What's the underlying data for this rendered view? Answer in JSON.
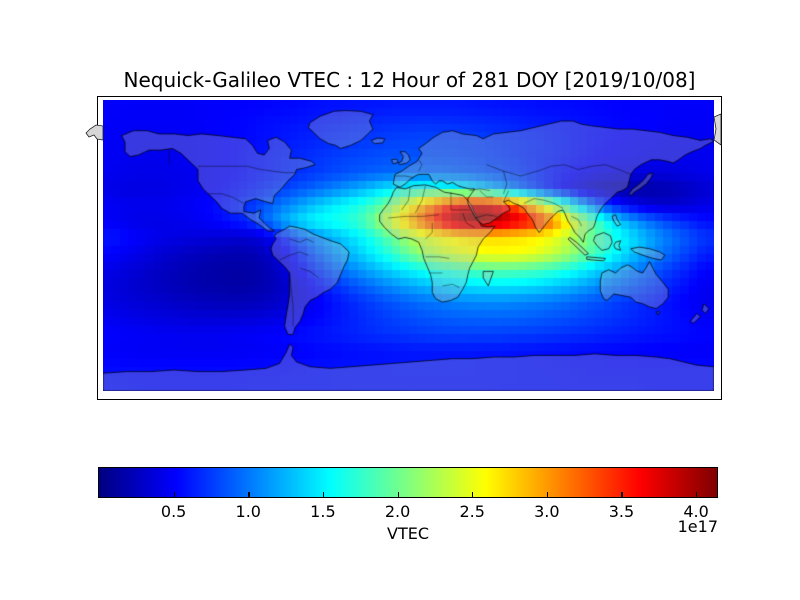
{
  "figure": {
    "title": "Nequick-Galileo VTEC : 12 Hour of 281 DOY [2019/10/08]",
    "background": "#ffffff"
  },
  "colorbar": {
    "label": "VTEC",
    "offset_text": "1e17",
    "ticks": [
      0.5,
      1.0,
      1.5,
      2.0,
      2.5,
      3.0,
      3.5,
      4.0
    ],
    "vmin": 0,
    "vmax": 4.14,
    "colormap": "jet"
  },
  "chart_data": {
    "type": "heatmap",
    "title": "Nequick-Galileo VTEC : 12 Hour of 281 DOY [2019/10/08]",
    "xlabel": "",
    "ylabel": "",
    "colorbar_label": "VTEC",
    "scale_factor_text": "1e17",
    "colormap": "jet",
    "vmin": 0,
    "vmax": 4.14,
    "projection": "equirectangular world map",
    "lon_range": [
      -180,
      180
    ],
    "lat_range": [
      -90,
      90
    ],
    "grid_resolution_deg": 10,
    "lon_centers": [
      -175,
      -165,
      -155,
      -145,
      -135,
      -125,
      -115,
      -105,
      -95,
      -85,
      -75,
      -65,
      -55,
      -45,
      -35,
      -25,
      -15,
      -5,
      5,
      15,
      25,
      35,
      45,
      55,
      65,
      75,
      85,
      95,
      105,
      115,
      125,
      135,
      145,
      155,
      165,
      175
    ],
    "lat_centers": [
      85,
      75,
      65,
      55,
      45,
      35,
      25,
      15,
      5,
      -5,
      -15,
      -25,
      -35,
      -45,
      -55,
      -65,
      -75,
      -85
    ],
    "values_1e17": [
      [
        0.5,
        0.5,
        0.49,
        0.49,
        0.49,
        0.5,
        0.5,
        0.51,
        0.52,
        0.53,
        0.54,
        0.55,
        0.57,
        0.58,
        0.59,
        0.6,
        0.61,
        0.62,
        0.62,
        0.62,
        0.62,
        0.61,
        0.6,
        0.59,
        0.58,
        0.57,
        0.56,
        0.55,
        0.54,
        0.53,
        0.52,
        0.51,
        0.51,
        0.5,
        0.5,
        0.5
      ],
      [
        0.5,
        0.49,
        0.49,
        0.49,
        0.49,
        0.5,
        0.51,
        0.52,
        0.54,
        0.56,
        0.58,
        0.6,
        0.62,
        0.64,
        0.66,
        0.68,
        0.7,
        0.71,
        0.72,
        0.72,
        0.71,
        0.7,
        0.69,
        0.67,
        0.65,
        0.63,
        0.61,
        0.59,
        0.57,
        0.55,
        0.53,
        0.52,
        0.51,
        0.5,
        0.49,
        0.49
      ],
      [
        0.48,
        0.47,
        0.46,
        0.46,
        0.47,
        0.48,
        0.5,
        0.52,
        0.54,
        0.57,
        0.6,
        0.63,
        0.66,
        0.69,
        0.72,
        0.75,
        0.77,
        0.79,
        0.8,
        0.8,
        0.79,
        0.78,
        0.76,
        0.73,
        0.7,
        0.67,
        0.64,
        0.6,
        0.57,
        0.54,
        0.52,
        0.5,
        0.48,
        0.47,
        0.47,
        0.47
      ],
      [
        0.48,
        0.46,
        0.45,
        0.45,
        0.46,
        0.48,
        0.5,
        0.53,
        0.56,
        0.6,
        0.64,
        0.68,
        0.72,
        0.76,
        0.79,
        0.82,
        0.84,
        0.85,
        0.85,
        0.84,
        0.83,
        0.81,
        0.78,
        0.75,
        0.71,
        0.67,
        0.63,
        0.59,
        0.55,
        0.52,
        0.49,
        0.47,
        0.46,
        0.45,
        0.45,
        0.46
      ],
      [
        0.46,
        0.44,
        0.43,
        0.43,
        0.44,
        0.46,
        0.49,
        0.52,
        0.56,
        0.6,
        0.65,
        0.7,
        0.75,
        0.8,
        0.85,
        0.89,
        0.93,
        0.95,
        0.96,
        0.95,
        0.93,
        0.9,
        0.86,
        0.81,
        0.75,
        0.68,
        0.61,
        0.54,
        0.48,
        0.43,
        0.4,
        0.38,
        0.38,
        0.39,
        0.41,
        0.44
      ],
      [
        0.42,
        0.4,
        0.4,
        0.41,
        0.43,
        0.46,
        0.5,
        0.55,
        0.61,
        0.68,
        0.76,
        0.85,
        0.94,
        1.04,
        1.15,
        1.28,
        1.42,
        1.55,
        1.64,
        1.67,
        1.63,
        1.52,
        1.36,
        1.17,
        0.97,
        0.78,
        0.6,
        0.44,
        0.31,
        0.22,
        0.17,
        0.15,
        0.17,
        0.21,
        0.27,
        0.34
      ],
      [
        0.48,
        0.46,
        0.45,
        0.45,
        0.47,
        0.5,
        0.55,
        0.62,
        0.72,
        0.85,
        1.0,
        1.16,
        1.32,
        1.46,
        1.58,
        1.72,
        1.95,
        2.3,
        2.75,
        3.15,
        3.5,
        3.75,
        3.8,
        3.6,
        3.2,
        2.7,
        2.15,
        1.6,
        1.12,
        0.78,
        0.55,
        0.4,
        0.33,
        0.32,
        0.36,
        0.42
      ],
      [
        0.48,
        0.44,
        0.42,
        0.42,
        0.44,
        0.47,
        0.52,
        0.6,
        0.68,
        0.92,
        1.18,
        1.4,
        1.55,
        1.62,
        1.7,
        1.88,
        2.25,
        2.7,
        3.1,
        3.5,
        3.92,
        4.12,
        4.1,
        3.95,
        3.75,
        3.55,
        3.15,
        2.6,
        2.08,
        1.65,
        1.32,
        1.08,
        0.9,
        0.76,
        0.65,
        0.56
      ],
      [
        0.6,
        0.54,
        0.48,
        0.43,
        0.4,
        0.38,
        0.36,
        0.34,
        0.33,
        0.4,
        0.6,
        0.85,
        1.08,
        1.25,
        1.4,
        1.58,
        1.82,
        2.1,
        2.32,
        2.5,
        2.62,
        2.7,
        2.73,
        2.73,
        2.7,
        2.64,
        2.52,
        2.32,
        2.06,
        1.8,
        1.56,
        1.35,
        1.15,
        0.98,
        0.84,
        0.72
      ],
      [
        0.52,
        0.46,
        0.4,
        0.34,
        0.29,
        0.25,
        0.22,
        0.2,
        0.2,
        0.26,
        0.42,
        0.65,
        0.88,
        1.08,
        1.25,
        1.42,
        1.62,
        1.85,
        2.08,
        2.26,
        2.4,
        2.5,
        2.56,
        2.57,
        2.55,
        2.48,
        2.36,
        2.18,
        1.95,
        1.7,
        1.46,
        1.25,
        1.06,
        0.9,
        0.76,
        0.63
      ],
      [
        0.42,
        0.37,
        0.32,
        0.27,
        0.23,
        0.19,
        0.17,
        0.15,
        0.15,
        0.2,
        0.32,
        0.5,
        0.7,
        0.88,
        1.04,
        1.18,
        1.32,
        1.45,
        1.57,
        1.67,
        1.76,
        1.83,
        1.88,
        1.9,
        1.88,
        1.83,
        1.75,
        1.63,
        1.48,
        1.32,
        1.16,
        1.01,
        0.87,
        0.74,
        0.62,
        0.51
      ],
      [
        0.38,
        0.34,
        0.3,
        0.26,
        0.22,
        0.19,
        0.17,
        0.16,
        0.16,
        0.2,
        0.28,
        0.4,
        0.54,
        0.68,
        0.81,
        0.93,
        1.04,
        1.14,
        1.23,
        1.31,
        1.38,
        1.43,
        1.46,
        1.47,
        1.45,
        1.41,
        1.34,
        1.26,
        1.16,
        1.05,
        0.94,
        0.84,
        0.74,
        0.64,
        0.55,
        0.46
      ],
      [
        0.4,
        0.37,
        0.34,
        0.31,
        0.28,
        0.26,
        0.24,
        0.23,
        0.23,
        0.26,
        0.31,
        0.39,
        0.48,
        0.57,
        0.66,
        0.74,
        0.82,
        0.89,
        0.95,
        1.0,
        1.04,
        1.07,
        1.08,
        1.08,
        1.06,
        1.03,
        0.99,
        0.94,
        0.88,
        0.82,
        0.75,
        0.69,
        0.62,
        0.56,
        0.5,
        0.45
      ],
      [
        0.46,
        0.43,
        0.41,
        0.39,
        0.37,
        0.36,
        0.35,
        0.35,
        0.36,
        0.38,
        0.41,
        0.46,
        0.52,
        0.58,
        0.64,
        0.7,
        0.75,
        0.8,
        0.84,
        0.87,
        0.9,
        0.91,
        0.92,
        0.92,
        0.91,
        0.89,
        0.86,
        0.83,
        0.79,
        0.75,
        0.71,
        0.66,
        0.62,
        0.58,
        0.53,
        0.49
      ],
      [
        0.52,
        0.5,
        0.49,
        0.48,
        0.47,
        0.47,
        0.47,
        0.48,
        0.49,
        0.51,
        0.53,
        0.56,
        0.59,
        0.62,
        0.65,
        0.68,
        0.71,
        0.73,
        0.75,
        0.77,
        0.78,
        0.78,
        0.78,
        0.77,
        0.76,
        0.75,
        0.73,
        0.71,
        0.69,
        0.66,
        0.64,
        0.61,
        0.59,
        0.57,
        0.55,
        0.53
      ],
      [
        0.5,
        0.49,
        0.48,
        0.48,
        0.47,
        0.47,
        0.47,
        0.47,
        0.48,
        0.49,
        0.5,
        0.51,
        0.53,
        0.54,
        0.56,
        0.57,
        0.58,
        0.59,
        0.6,
        0.6,
        0.6,
        0.6,
        0.59,
        0.59,
        0.58,
        0.57,
        0.56,
        0.55,
        0.54,
        0.53,
        0.52,
        0.51,
        0.5,
        0.5,
        0.49,
        0.49
      ],
      [
        0.55,
        0.55,
        0.54,
        0.54,
        0.54,
        0.54,
        0.54,
        0.54,
        0.55,
        0.55,
        0.56,
        0.56,
        0.57,
        0.58,
        0.58,
        0.59,
        0.59,
        0.6,
        0.6,
        0.6,
        0.6,
        0.6,
        0.59,
        0.59,
        0.58,
        0.58,
        0.57,
        0.57,
        0.56,
        0.56,
        0.55,
        0.55,
        0.55,
        0.55,
        0.55,
        0.55
      ],
      [
        0.57,
        0.57,
        0.56,
        0.56,
        0.56,
        0.56,
        0.56,
        0.56,
        0.57,
        0.57,
        0.57,
        0.58,
        0.58,
        0.58,
        0.59,
        0.59,
        0.59,
        0.59,
        0.59,
        0.59,
        0.59,
        0.59,
        0.59,
        0.58,
        0.58,
        0.58,
        0.58,
        0.57,
        0.57,
        0.57,
        0.57,
        0.57,
        0.56,
        0.56,
        0.56,
        0.56
      ]
    ]
  }
}
